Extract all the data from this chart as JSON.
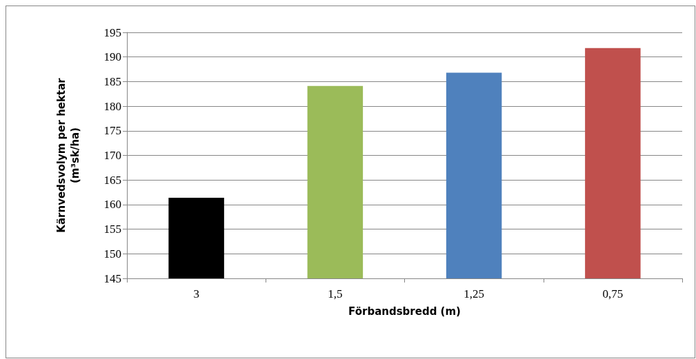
{
  "chart_data": {
    "type": "bar",
    "categories": [
      "3",
      "1,5",
      "1,25",
      "0,75"
    ],
    "values": [
      161.4,
      184.1,
      186.8,
      191.8
    ],
    "colors": [
      "#000000",
      "#9bbb59",
      "#4f81bd",
      "#c0504d"
    ],
    "xlabel": "Förbandsbredd (m)",
    "ylabel": "Kärnvedsvolym per hektar\n(m³sk/ha)",
    "ylim": [
      145,
      195
    ],
    "yticks": [
      145,
      150,
      155,
      160,
      165,
      170,
      175,
      180,
      185,
      190,
      195
    ],
    "grid": "y"
  }
}
